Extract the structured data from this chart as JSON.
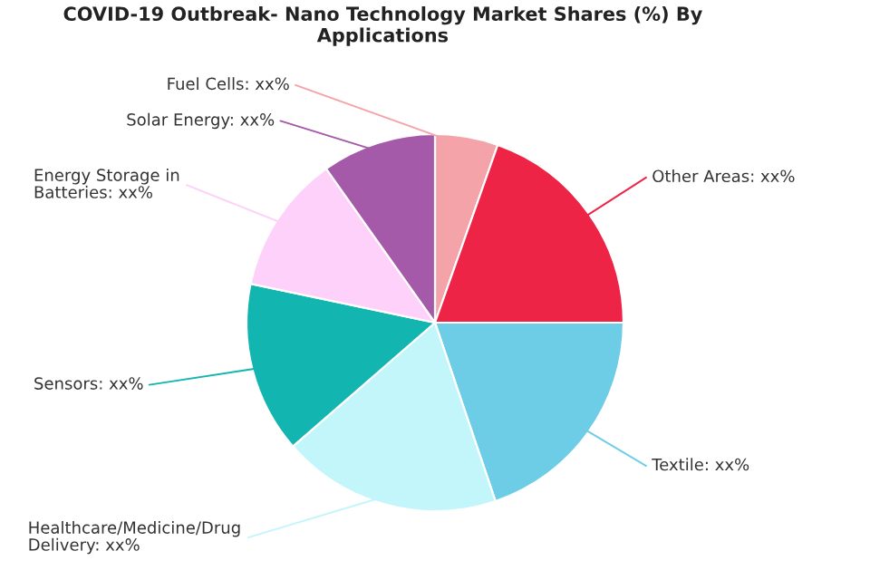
{
  "chart_data": {
    "type": "pie",
    "title": "COVID-19 Outbreak- Nano Technology Market Shares (%) By Applications",
    "categories": [
      "Fuel Cells",
      "Other Areas",
      "Textile",
      "Healthcare/Medicine/Drug Delivery",
      "Sensors",
      "Energy Storage in Batteries",
      "Solar Energy"
    ],
    "values": [
      5.4,
      19.6,
      19.8,
      18.8,
      14.7,
      11.9,
      9.8
    ],
    "colors": [
      "#f4a3a8",
      "#ee2447",
      "#6dcde6",
      "#c3f6fa",
      "#13b5b1",
      "#fdd1f9",
      "#a45aa9"
    ],
    "value_labels": [
      "xx%",
      "xx%",
      "xx%",
      "xx%",
      "xx%",
      "xx%",
      "xx%"
    ]
  }
}
